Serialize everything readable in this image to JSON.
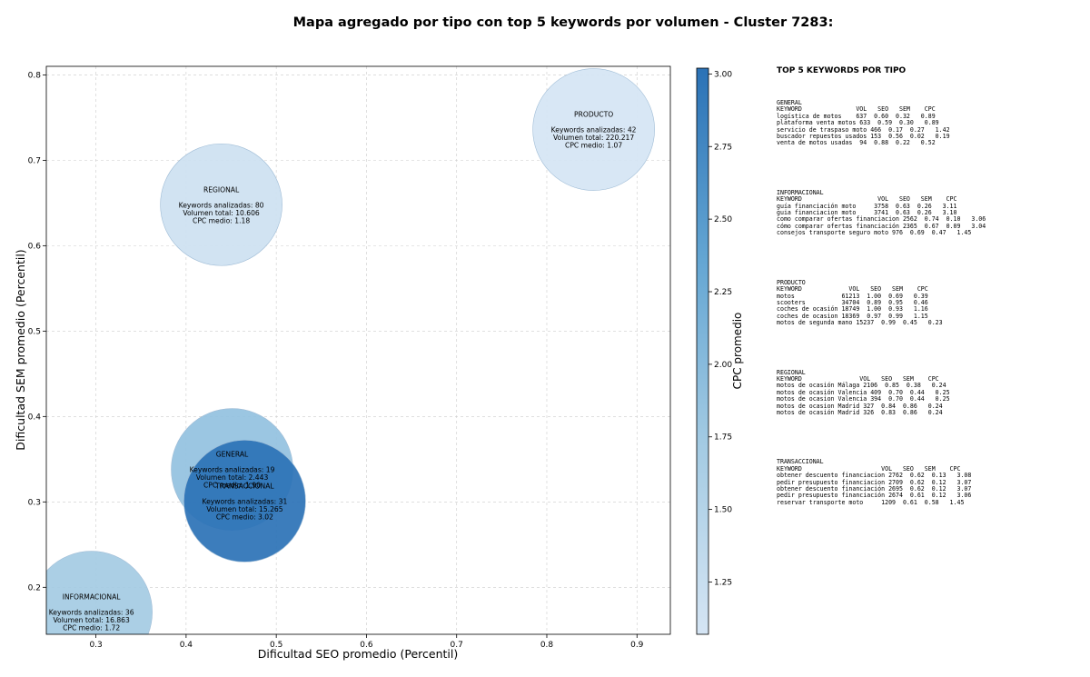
{
  "chart_data": {
    "type": "scatter",
    "title": "Mapa agregado por tipo con top 5 keywords por volumen - Cluster 7283:",
    "xlabel": "Dificultad SEO promedio (Percentil)",
    "ylabel": "Dificultad SEM promedio (Percentil)",
    "xlim": [
      0.245,
      0.937
    ],
    "ylim": [
      0.145,
      0.81
    ],
    "xticks": [
      "0.3",
      "0.4",
      "0.5",
      "0.6",
      "0.7",
      "0.8",
      "0.9"
    ],
    "yticks": [
      "0.2",
      "0.3",
      "0.4",
      "0.5",
      "0.6",
      "0.7",
      "0.8"
    ],
    "grid": true,
    "colorbar": {
      "label": "CPC promedio",
      "range": [
        1.07,
        3.02
      ],
      "ticks": [
        "1.25",
        "1.50",
        "1.75",
        "2.00",
        "2.25",
        "2.50",
        "2.75",
        "3.00"
      ],
      "colors": [
        "#d5e5f4",
        "#a4cbe3",
        "#64a6d3",
        "#2b72b6"
      ]
    },
    "points": [
      {
        "name": "PRODUCTO",
        "x": 0.852,
        "y": 0.736,
        "cpc": 1.07,
        "lines": [
          "Keywords analizadas: 42",
          "Volumen total: 220.217",
          "CPC medio: 1.07"
        ]
      },
      {
        "name": "REGIONAL",
        "x": 0.439,
        "y": 0.648,
        "cpc": 1.18,
        "lines": [
          "Keywords analizadas: 80",
          "Volumen total: 10.606",
          "CPC medio: 1.18"
        ]
      },
      {
        "name": "GENERAL",
        "x": 0.451,
        "y": 0.338,
        "cpc": 1.9,
        "lines": [
          "Keywords analizadas: 19",
          "Volumen total: 2.443",
          "CPC medio: 1.90"
        ]
      },
      {
        "name": "TRANSACCIONAL",
        "x": 0.465,
        "y": 0.301,
        "cpc": 3.02,
        "lines": [
          "Keywords analizadas: 31",
          "Volumen total: 15.265",
          "CPC medio: 3.02"
        ]
      },
      {
        "name": "INFORMACIONAL",
        "x": 0.295,
        "y": 0.171,
        "cpc": 1.72,
        "lines": [
          "Keywords analizadas: 36",
          "Volumen total: 16.863",
          "CPC medio: 1.72"
        ]
      }
    ]
  },
  "side_panel": {
    "title": "TOP 5 KEYWORDS POR TIPO",
    "blocks": [
      {
        "name": "GENERAL",
        "text": "GENERAL\nKEYWORD               VOL   SEO   SEM    CPC\nlogística de motos    637  0.60  0.32   0.89\nplataforma venta motos 633  0.59  0.30   0.89\nservicio de traspaso moto 466  0.17  0.27   1.42\nbuscador repuestos usados 153  0.56  0.02   0.19\nventa de motos usadas  94  0.88  0.22   0.52"
      },
      {
        "name": "INFORMACIONAL",
        "text": "INFORMACIONAL\nKEYWORD                     VOL   SEO   SEM    CPC\nguía financiación moto     3758  0.63  0.26   3.11\nguia financiacion moto     3741  0.63  0.26   3.10\ncomo comparar ofertas financiacion 2562  0.74  0.10   3.06\ncómo comparar ofertas financiación 2365  0.67  0.09   3.04\nconsejos transporte seguro moto 976  0.69  0.47   1.45"
      },
      {
        "name": "PRODUCTO",
        "text": "PRODUCTO\nKEYWORD             VOL   SEO   SEM    CPC\nmotos             61213  1.00  0.69   0.39\nscooters          34704  0.89  0.95   0.46\ncoches de ocasión 18749  1.00  0.93   1.16\ncoches de ocasion 18369  0.97  0.99   1.15\nmotos de segunda mano 15237  0.99  0.45   0.23"
      },
      {
        "name": "REGIONAL",
        "text": "REGIONAL\nKEYWORD                VOL   SEO   SEM    CPC\nmotos de ocasión Málaga 2106  0.85  0.38   0.24\nmotos de ocasión Valencia 409  0.70  0.44   0.25\nmotos de ocasion Valencia 394  0.70  0.44   0.25\nmotos de ocasion Madrid 327  0.84  0.86   0.24\nmotos de ocasión Madrid 326  0.83  0.86   0.24"
      },
      {
        "name": "TRANSACCIONAL",
        "text": "TRANSACCIONAL\nKEYWORD                      VOL   SEO   SEM    CPC\nobtener descuento financiacion 2762  0.62  0.13   3.08\npedir presupuesto financiacion 2709  0.62  0.12   3.07\nobtener descuento financiación 2695  0.62  0.12   3.07\npedir presupuesto financiación 2674  0.61  0.12   3.06\nreservar transporte moto     1209  0.61  0.58   1.45"
      }
    ]
  }
}
